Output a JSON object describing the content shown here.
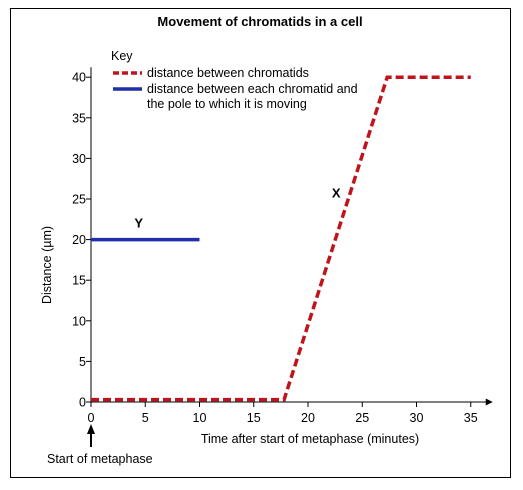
{
  "chart_data": {
    "type": "line",
    "title": "Movement of chromatids in a cell",
    "xlabel": "Time after start of metaphase (minutes)",
    "ylabel": "Distance  (µm)",
    "xlim": [
      0,
      35
    ],
    "ylim": [
      0,
      40
    ],
    "x_ticks": [
      0,
      5,
      10,
      15,
      20,
      25,
      30,
      35
    ],
    "y_ticks": [
      0,
      5,
      10,
      15,
      20,
      25,
      30,
      35,
      40
    ],
    "legend_position": "top-left",
    "key_title": "Key",
    "series": [
      {
        "name": "distance between chromatids",
        "label": "X",
        "style": "dashed",
        "color": "#c0141c",
        "x": [
          0,
          17.8,
          27.3,
          35
        ],
        "y": [
          0.3,
          0.3,
          40,
          40
        ],
        "label_at": [
          22.2,
          25.2
        ]
      },
      {
        "name": "distance between each chromatid and the pole to which it is moving",
        "name_lines": [
          "distance between each chromatid and",
          "the pole to which it is moving"
        ],
        "label": "Y",
        "style": "solid",
        "color": "#1f2fa8",
        "x": [
          0,
          10
        ],
        "y": [
          20,
          20
        ],
        "label_at": [
          4,
          21.5
        ]
      }
    ],
    "annotations": [
      {
        "text": "Start of metaphase",
        "x": 0,
        "arrow": "up"
      }
    ]
  }
}
